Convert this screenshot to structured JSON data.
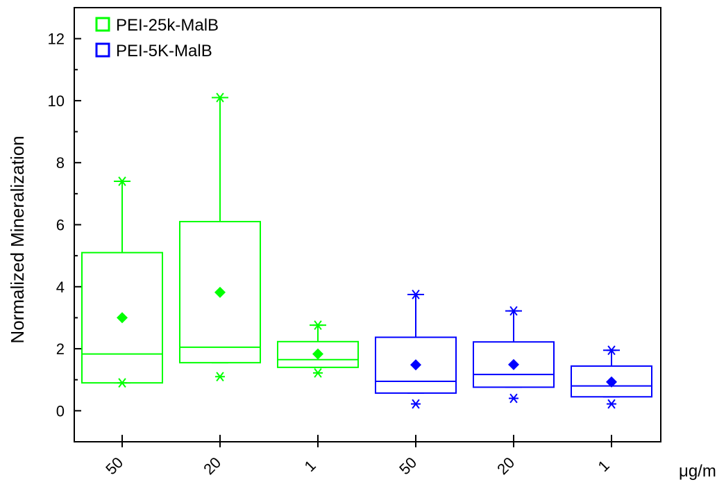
{
  "chart_data": {
    "type": "box",
    "title": "",
    "ylabel": "Normalized Mineralization",
    "xunit": "μg/ml",
    "ylim": [
      -1,
      13
    ],
    "yticks": [
      0,
      2,
      4,
      6,
      8,
      10,
      12
    ],
    "grid": false,
    "legend_position": "top-left",
    "categories": [
      "50",
      "20",
      "1",
      "50",
      "20",
      "1"
    ],
    "series": [
      {
        "name": "PEI-25k-MalB",
        "color": "#00ff00",
        "boxes": [
          {
            "category": "50",
            "q1": 0.9,
            "median": 1.83,
            "q3": 5.1,
            "whisker_low": 0.9,
            "whisker_high": 7.4,
            "mean": 3.0,
            "min": 0.9,
            "max": 7.4
          },
          {
            "category": "20",
            "q1": 1.55,
            "median": 2.05,
            "q3": 6.1,
            "whisker_low": 1.55,
            "whisker_high": 10.1,
            "mean": 3.82,
            "min": 1.1,
            "max": 10.1
          },
          {
            "category": "1",
            "q1": 1.4,
            "median": 1.65,
            "q3": 2.23,
            "whisker_low": 1.4,
            "whisker_high": 2.76,
            "mean": 1.83,
            "min": 1.22,
            "max": 2.76
          }
        ]
      },
      {
        "name": "PEI-5K-MalB",
        "color": "#0000ff",
        "boxes": [
          {
            "category": "50",
            "q1": 0.57,
            "median": 0.95,
            "q3": 2.37,
            "whisker_low": 0.57,
            "whisker_high": 3.75,
            "mean": 1.48,
            "min": 0.22,
            "max": 3.75
          },
          {
            "category": "20",
            "q1": 0.76,
            "median": 1.17,
            "q3": 2.22,
            "whisker_low": 0.76,
            "whisker_high": 3.22,
            "mean": 1.49,
            "min": 0.4,
            "max": 3.22
          },
          {
            "category": "1",
            "q1": 0.45,
            "median": 0.8,
            "q3": 1.44,
            "whisker_low": 0.45,
            "whisker_high": 1.95,
            "mean": 0.93,
            "min": 0.22,
            "max": 1.95
          }
        ]
      }
    ]
  }
}
